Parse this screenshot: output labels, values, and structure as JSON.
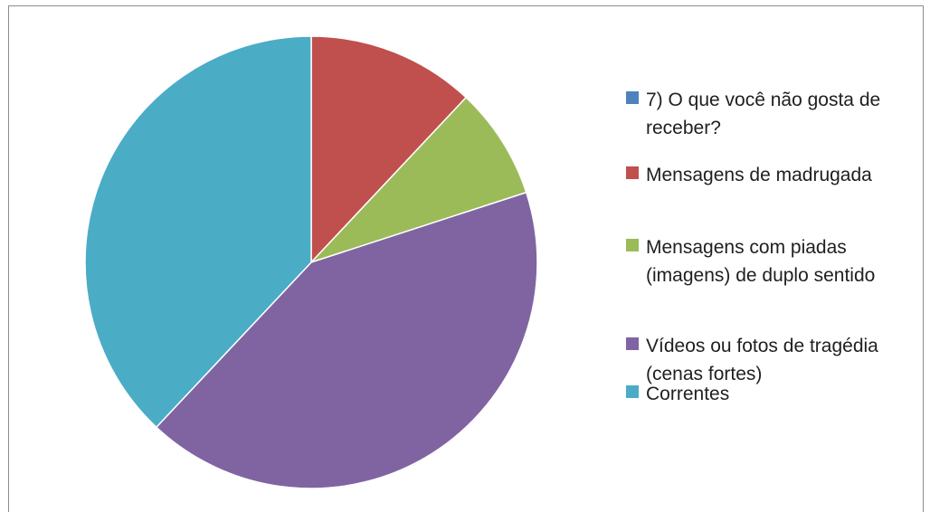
{
  "chart_data": {
    "type": "pie",
    "title": "",
    "legend_position": "right",
    "categories": [
      "7) O que você não gosta de receber?",
      "Mensagens de madrugada",
      "Mensagens com piadas (imagens) de duplo sentido",
      "Vídeos ou fotos de tragédia (cenas fortes)",
      "Correntes"
    ],
    "values": [
      0,
      12,
      8,
      42,
      38
    ],
    "colors": [
      "#4f81bd",
      "#c0504d",
      "#9bbb59",
      "#8064a2",
      "#4bacc6"
    ]
  }
}
